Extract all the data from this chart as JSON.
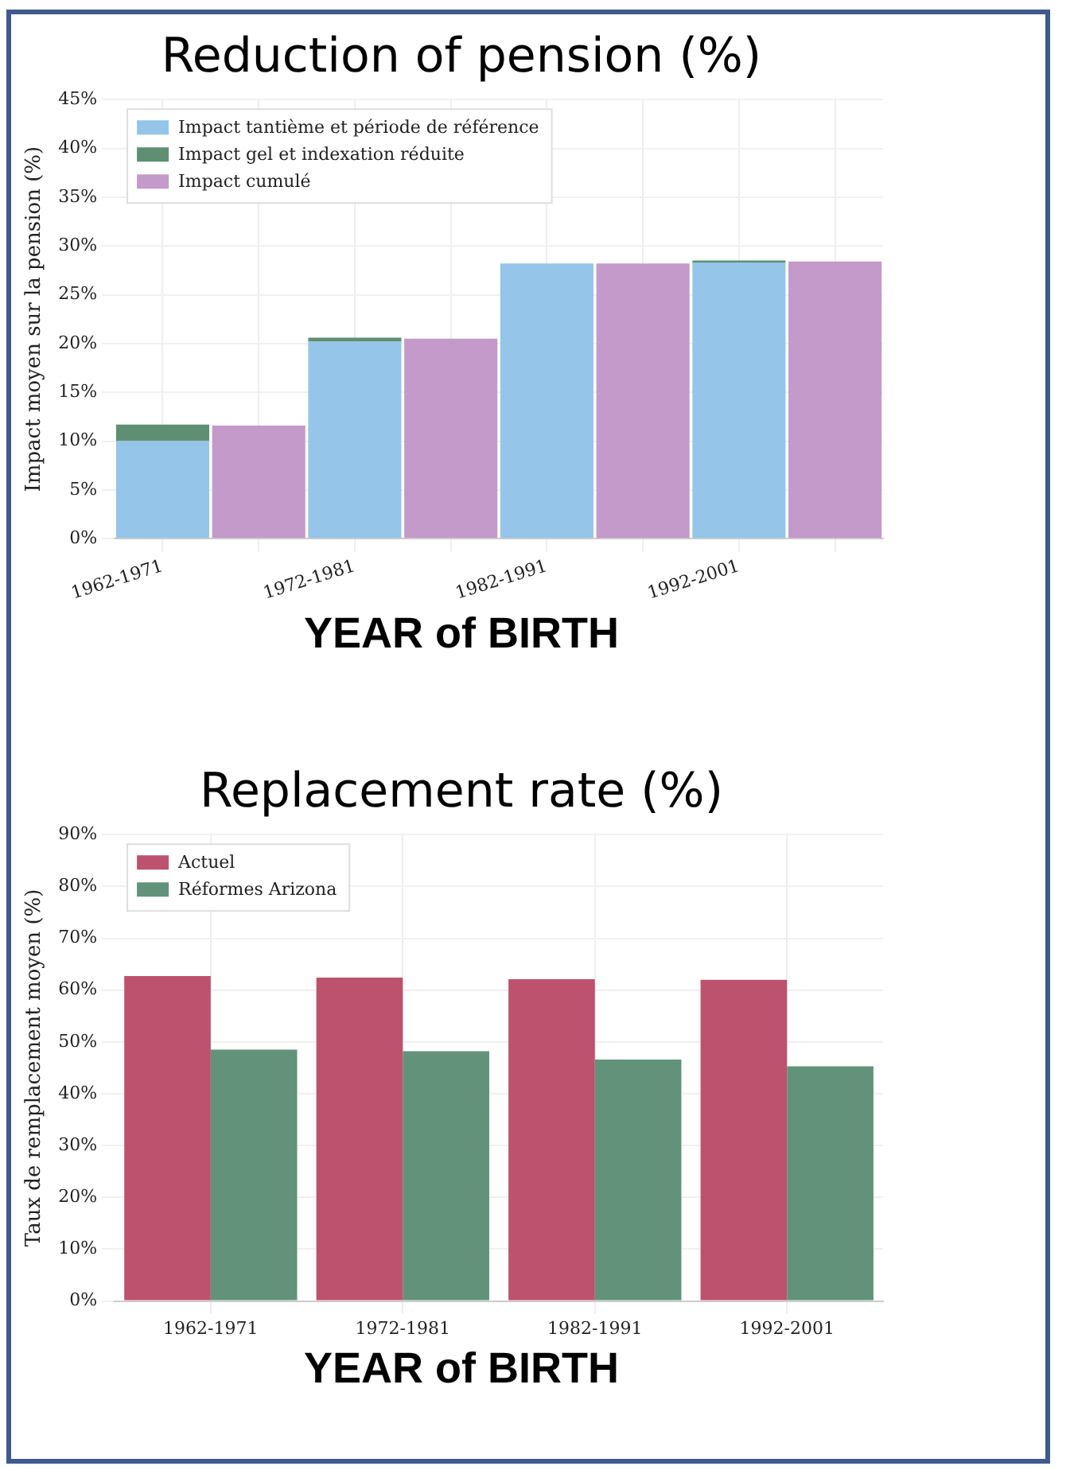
{
  "chart_data": [
    {
      "type": "bar",
      "title": "Reduction of pension (%)",
      "xlabel": "YEAR of BIRTH",
      "ylabel": "Impact moyen sur la pension (%)",
      "categories": [
        "1962-1971",
        null,
        "1972-1981",
        null,
        "1982-1991",
        null,
        "1992-2001",
        null
      ],
      "stacked": true,
      "series": [
        {
          "name": "Impact tantième et période de référence",
          "color": "#95c5e8",
          "values": [
            10,
            null,
            20.2,
            null,
            28.2,
            null,
            28.3,
            null
          ]
        },
        {
          "name": "Impact gel et indexation réduite",
          "color": "#5e8f72",
          "values": [
            1.7,
            null,
            0.4,
            null,
            0,
            null,
            0.2,
            null
          ]
        },
        {
          "name": "Impact cumulé",
          "color": "#c39ac9",
          "values": [
            null,
            11.6,
            null,
            20.5,
            null,
            28.2,
            null,
            28.4
          ]
        }
      ],
      "ylim": [
        0,
        45
      ],
      "yticks": [
        {
          "value": 0,
          "label": "0%"
        },
        {
          "value": 5,
          "label": "5%"
        },
        {
          "value": 10,
          "label": "10%"
        },
        {
          "value": 15,
          "label": "15%"
        },
        {
          "value": 20,
          "label": "20%"
        },
        {
          "value": 25,
          "label": "25%"
        },
        {
          "value": 30,
          "label": "30%"
        },
        {
          "value": 35,
          "label": "35%"
        },
        {
          "value": 40,
          "label": "40%"
        },
        {
          "value": 45,
          "label": "45%"
        }
      ],
      "grid": true,
      "legend": "top left"
    },
    {
      "type": "bar",
      "title": "Replacement rate (%)",
      "xlabel": "YEAR of BIRTH",
      "ylabel": "Taux de remplacement moyen (%)",
      "categories": [
        "1962-1971",
        "1972-1981",
        "1982-1991",
        "1992-2001"
      ],
      "series": [
        {
          "name": "Actuel",
          "color": "#bd526f",
          "values": [
            62.7,
            62.4,
            62.1,
            62.0
          ]
        },
        {
          "name": "Réformes Arizona",
          "color": "#62937a",
          "values": [
            48.5,
            48.2,
            46.6,
            45.3
          ]
        }
      ],
      "ylim": [
        0,
        90
      ],
      "yticks": [
        {
          "value": 0,
          "label": "0%"
        },
        {
          "value": 10,
          "label": "10%"
        },
        {
          "value": 20,
          "label": "20%"
        },
        {
          "value": 30,
          "label": "30%"
        },
        {
          "value": 40,
          "label": "40%"
        },
        {
          "value": 50,
          "label": "50%"
        },
        {
          "value": 60,
          "label": "60%"
        },
        {
          "value": 70,
          "label": "70%"
        },
        {
          "value": 80,
          "label": "80%"
        },
        {
          "value": 90,
          "label": "90%"
        }
      ],
      "grid": true,
      "legend": "top left"
    }
  ]
}
